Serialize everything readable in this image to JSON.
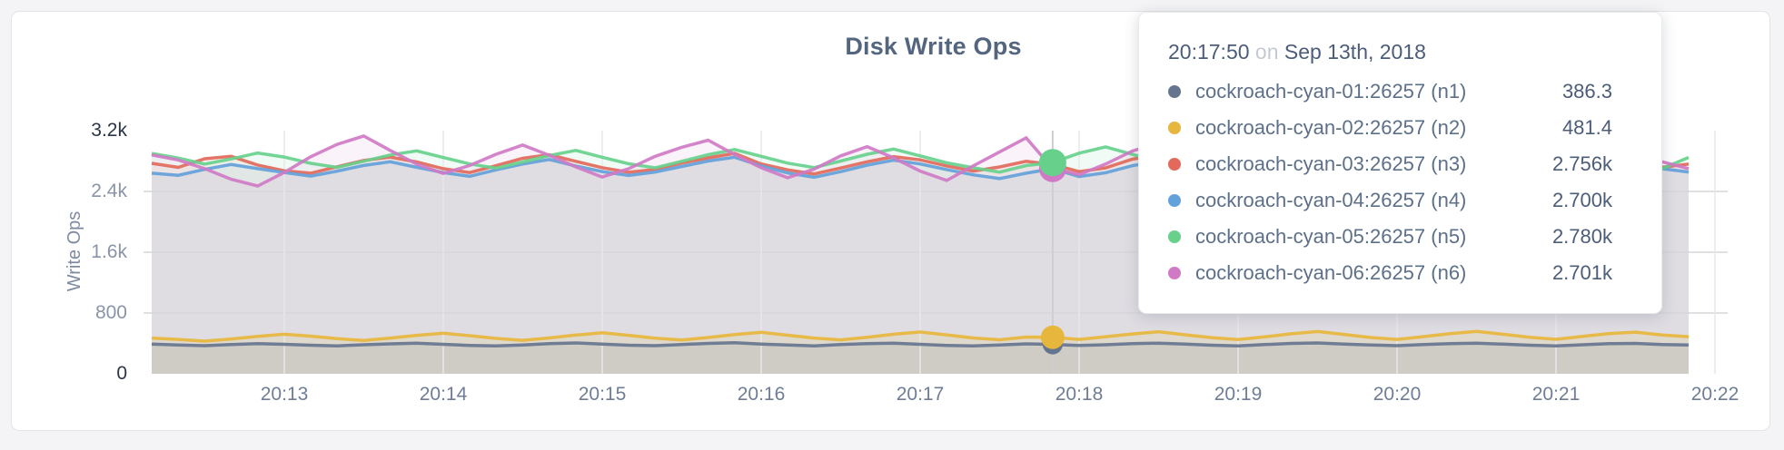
{
  "page": {
    "background": "#f4f4f6"
  },
  "card": {
    "background": "#ffffff",
    "border_color": "#e4e4e7"
  },
  "chart_data": {
    "type": "line",
    "title": "Disk Write Ops",
    "ylabel": "Write Ops",
    "x_ticks": [
      "20:13",
      "20:14",
      "20:15",
      "20:16",
      "20:17",
      "20:18",
      "20:19",
      "20:20",
      "20:21",
      "20:22"
    ],
    "y_ticks": [
      "3.2k",
      "2.4k",
      "1.6k",
      "800",
      "0"
    ],
    "ylim": [
      0,
      3200
    ],
    "grid_y_values": [
      800,
      1600,
      2400
    ],
    "grid": true,
    "legend_position": "tooltip",
    "hover_index": 34,
    "hover_time": "20:17:50",
    "hover_line_color": "#cdced3",
    "series": [
      {
        "id": "n1",
        "name": "cockroach-cyan-01:26257 (n1)",
        "color": "#66758f",
        "hover_value": "386.3",
        "values": [
          392,
          380,
          370,
          384,
          398,
          388,
          376,
          368,
          382,
          394,
          402,
          388,
          374,
          366,
          380,
          396,
          406,
          390,
          376,
          370,
          386,
          400,
          408,
          392,
          378,
          368,
          384,
          398,
          404,
          388,
          374,
          366,
          380,
          394,
          386.3,
          372,
          382,
          396,
          404,
          390,
          376,
          368,
          384,
          400,
          406,
          392,
          378,
          370,
          386,
          398,
          404,
          390,
          376,
          368,
          382,
          396,
          400,
          386,
          380
        ]
      },
      {
        "id": "n2",
        "name": "cockroach-cyan-02:26257 (n2)",
        "color": "#e7b63c",
        "hover_value": "481.4",
        "values": [
          470,
          452,
          430,
          458,
          492,
          520,
          496,
          462,
          438,
          470,
          506,
          534,
          502,
          466,
          440,
          472,
          510,
          540,
          506,
          468,
          444,
          478,
          516,
          546,
          508,
          470,
          446,
          480,
          520,
          550,
          512,
          472,
          448,
          484,
          481.4,
          452,
          488,
          524,
          554,
          514,
          476,
          450,
          486,
          526,
          556,
          518,
          478,
          452,
          490,
          528,
          558,
          520,
          480,
          454,
          492,
          530,
          548,
          510,
          488
        ]
      },
      {
        "id": "n3",
        "name": "cockroach-cyan-03:26257 (n3)",
        "color": "#e2695b",
        "hover_value": "2.756k",
        "values": [
          2770,
          2716,
          2830,
          2862,
          2748,
          2672,
          2640,
          2725,
          2808,
          2851,
          2788,
          2700,
          2648,
          2739,
          2836,
          2884,
          2796,
          2713,
          2652,
          2690,
          2774,
          2842,
          2901,
          2762,
          2684,
          2630,
          2708,
          2790,
          2858,
          2815,
          2736,
          2668,
          2722,
          2796,
          2756,
          2660,
          2710,
          2824,
          2888,
          2772,
          2694,
          2628,
          2735,
          2812,
          2866,
          2742,
          2676,
          2618,
          2724,
          2800,
          2874,
          2790,
          2702,
          2642,
          2730,
          2848,
          2806,
          2718,
          2760
        ]
      },
      {
        "id": "n4",
        "name": "cockroach-cyan-04:26257 (n4)",
        "color": "#63a1da",
        "hover_value": "2.700k",
        "values": [
          2640,
          2612,
          2690,
          2755,
          2700,
          2648,
          2602,
          2668,
          2742,
          2790,
          2718,
          2650,
          2598,
          2684,
          2760,
          2820,
          2736,
          2662,
          2610,
          2656,
          2728,
          2800,
          2850,
          2734,
          2644,
          2586,
          2660,
          2746,
          2812,
          2762,
          2688,
          2618,
          2570,
          2640,
          2700,
          2596,
          2646,
          2738,
          2802,
          2730,
          2654,
          2592,
          2676,
          2758,
          2814,
          2716,
          2640,
          2580,
          2668,
          2752,
          2826,
          2744,
          2656,
          2600,
          2686,
          2772,
          2822,
          2700,
          2656
        ]
      },
      {
        "id": "n5",
        "name": "cockroach-cyan-05:26257 (n5)",
        "color": "#67d18c",
        "hover_value": "2.780k",
        "values": [
          2900,
          2840,
          2760,
          2828,
          2906,
          2852,
          2770,
          2716,
          2798,
          2880,
          2934,
          2846,
          2762,
          2706,
          2788,
          2872,
          2940,
          2850,
          2764,
          2710,
          2796,
          2884,
          2952,
          2862,
          2772,
          2714,
          2800,
          2890,
          2958,
          2868,
          2776,
          2712,
          2654,
          2740,
          2780,
          2904,
          2986,
          2888,
          2792,
          2730,
          2818,
          2908,
          2964,
          2860,
          2766,
          2708,
          2794,
          2886,
          2948,
          2852,
          2760,
          2702,
          2790,
          2880,
          2940,
          2846,
          2756,
          2700,
          2848
        ]
      },
      {
        "id": "n6",
        "name": "cockroach-cyan-06:26257 (n6)",
        "color": "#d07ac6",
        "hover_value": "2.701k",
        "values": [
          2880,
          2814,
          2700,
          2560,
          2472,
          2650,
          2856,
          3020,
          3130,
          2940,
          2760,
          2636,
          2742,
          2890,
          3010,
          2876,
          2724,
          2590,
          2700,
          2862,
          2980,
          3075,
          2885,
          2712,
          2580,
          2694,
          2868,
          2990,
          2842,
          2668,
          2544,
          2736,
          2920,
          3104,
          2701,
          2620,
          2760,
          2930,
          3040,
          2872,
          2700,
          2566,
          2720,
          2908,
          3026,
          2850,
          2680,
          2548,
          2726,
          2912,
          3058,
          2890,
          2700,
          2582,
          2716,
          2896,
          2984,
          2790,
          2700
        ]
      }
    ]
  },
  "tooltip": {
    "time": "20:17:50",
    "conjunction": "on",
    "date": "Sep 13th, 2018",
    "rows": [
      {
        "name": "cockroach-cyan-01:26257 (n1)",
        "value": "386.3",
        "color": "#66758f"
      },
      {
        "name": "cockroach-cyan-02:26257 (n2)",
        "value": "481.4",
        "color": "#e7b63c"
      },
      {
        "name": "cockroach-cyan-03:26257 (n3)",
        "value": "2.756k",
        "color": "#e2695b"
      },
      {
        "name": "cockroach-cyan-04:26257 (n4)",
        "value": "2.700k",
        "color": "#63a1da"
      },
      {
        "name": "cockroach-cyan-05:26257 (n5)",
        "value": "2.780k",
        "color": "#67d18c"
      },
      {
        "name": "cockroach-cyan-06:26257 (n6)",
        "value": "2.701k",
        "color": "#d07ac6"
      }
    ]
  }
}
